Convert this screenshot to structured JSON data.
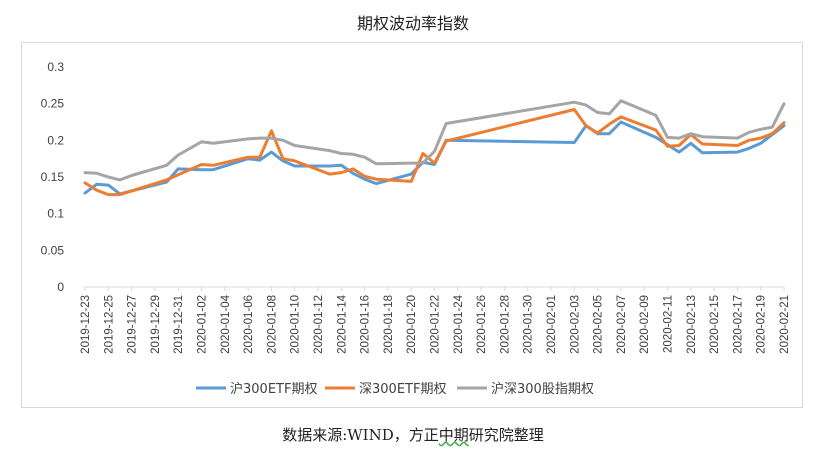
{
  "chart_data": {
    "type": "line",
    "title": "期权波动率指数",
    "xlabel": "",
    "ylabel": "",
    "ylim": [
      0,
      0.3
    ],
    "yticks": [
      "0",
      "0.05",
      "0.1",
      "0.15",
      "0.2",
      "0.25",
      "0.3"
    ],
    "grid": false,
    "legend_position": "bottom",
    "x": [
      "2019-12-23",
      "2019-12-24",
      "2019-12-25",
      "2019-12-26",
      "2019-12-27",
      "2019-12-30",
      "2019-12-31",
      "2020-01-02",
      "2020-01-03",
      "2020-01-06",
      "2020-01-07",
      "2020-01-08",
      "2020-01-09",
      "2020-01-10",
      "2020-01-13",
      "2020-01-14",
      "2020-01-15",
      "2020-01-16",
      "2020-01-17",
      "2020-01-20",
      "2020-01-21",
      "2020-01-22",
      "2020-01-23",
      "2020-02-03",
      "2020-02-04",
      "2020-02-05",
      "2020-02-06",
      "2020-02-07",
      "2020-02-10",
      "2020-02-11",
      "2020-02-12",
      "2020-02-13",
      "2020-02-14",
      "2020-02-17",
      "2020-02-18",
      "2020-02-19",
      "2020-02-20",
      "2020-02-21"
    ],
    "xticks": [
      "2019-12-23",
      "2019-12-25",
      "2019-12-27",
      "2019-12-29",
      "2019-12-31",
      "2020-01-02",
      "2020-01-04",
      "2020-01-06",
      "2020-01-08",
      "2020-01-10",
      "2020-01-12",
      "2020-01-14",
      "2020-01-16",
      "2020-01-18",
      "2020-01-20",
      "2020-01-22",
      "2020-01-24",
      "2020-01-26",
      "2020-01-28",
      "2020-01-30",
      "2020-02-01",
      "2020-02-03",
      "2020-02-05",
      "2020-02-07",
      "2020-02-09",
      "2020-02-11",
      "2020-02-13",
      "2020-02-15",
      "2020-02-17",
      "2020-02-19",
      "2020-02-21"
    ],
    "series": [
      {
        "name": "沪300ETF期权",
        "color": "#5b9bd5",
        "values": [
          0.128,
          0.14,
          0.139,
          0.127,
          0.131,
          0.143,
          0.161,
          0.16,
          0.16,
          0.175,
          0.173,
          0.184,
          0.172,
          0.165,
          0.165,
          0.166,
          0.155,
          0.147,
          0.141,
          0.154,
          0.17,
          0.167,
          0.2,
          0.197,
          0.22,
          0.209,
          0.209,
          0.225,
          0.204,
          0.194,
          0.184,
          0.196,
          0.183,
          0.184,
          0.189,
          0.196,
          0.208,
          0.22
        ]
      },
      {
        "name": "深300ETF期权",
        "color": "#ed7d31",
        "values": [
          0.142,
          0.132,
          0.126,
          0.126,
          0.131,
          0.146,
          0.153,
          0.167,
          0.166,
          0.177,
          0.177,
          0.213,
          0.175,
          0.172,
          0.154,
          0.156,
          0.161,
          0.151,
          0.147,
          0.144,
          0.182,
          0.169,
          0.199,
          0.242,
          0.22,
          0.21,
          0.222,
          0.232,
          0.214,
          0.192,
          0.193,
          0.208,
          0.195,
          0.193,
          0.2,
          0.203,
          0.209,
          0.224
        ]
      },
      {
        "name": "沪深300股指期权",
        "color": "#a5a5a5",
        "values": [
          0.156,
          0.155,
          0.15,
          0.146,
          0.152,
          0.166,
          0.18,
          0.198,
          0.196,
          0.202,
          0.203,
          0.203,
          0.2,
          0.193,
          0.186,
          0.182,
          0.181,
          0.177,
          0.168,
          0.169,
          0.169,
          0.185,
          0.223,
          0.252,
          0.248,
          0.238,
          0.236,
          0.254,
          0.234,
          0.204,
          0.203,
          0.209,
          0.205,
          0.203,
          0.211,
          0.215,
          0.218,
          0.25
        ]
      }
    ]
  },
  "source_prefix": "数据来源:WIND，方正",
  "source_underlined": "中期",
  "source_suffix": "研究院整理"
}
